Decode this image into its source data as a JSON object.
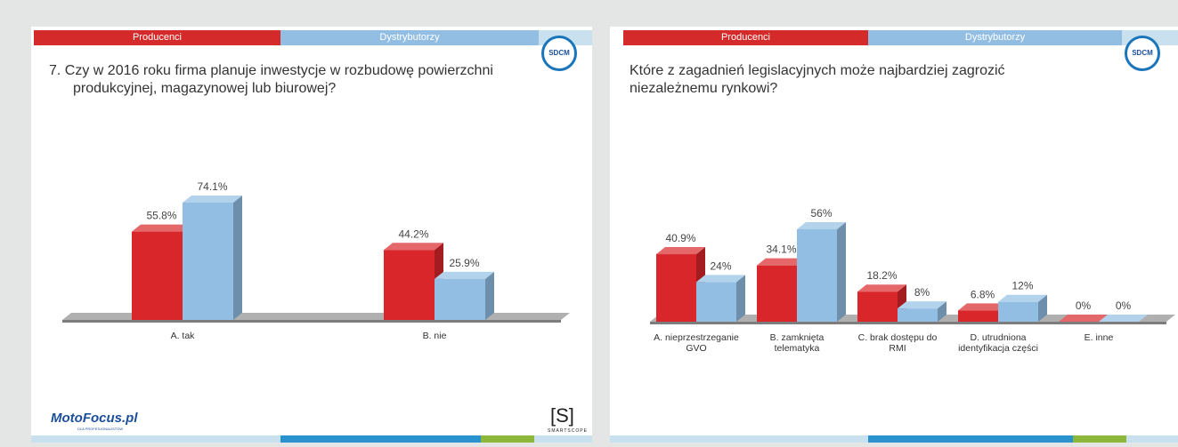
{
  "chart_data": [
    {
      "type": "bar",
      "title": "7. Czy w 2016 roku firma planuje inwestycje w rozbudowę powierzchni produkcyjnej, magazynowej lub biurowej?",
      "categories": [
        "A. tak",
        "B. nie"
      ],
      "series": [
        {
          "name": "Producenci",
          "color": "#d9262a",
          "values": [
            55.8,
            44.2
          ],
          "value_labels": [
            "55.8%",
            "44.2%"
          ]
        },
        {
          "name": "Dystrybutorzy",
          "color": "#93bee4",
          "values": [
            74.1,
            25.9
          ],
          "value_labels": [
            "74.1%",
            "25.9%"
          ]
        }
      ]
    },
    {
      "type": "bar",
      "title": "Które z zagadnień legislacyjnych może najbardziej zagrozić niezależnemu rynkowi?",
      "categories": [
        "A. nieprzestrzeganie GVO",
        "B. zamknięta telematyka",
        "C. brak dostępu do RMI",
        "D. utrudniona identyfikacja części",
        "E. inne"
      ],
      "series": [
        {
          "name": "Producenci",
          "color": "#d9262a",
          "values": [
            40.9,
            34.1,
            18.2,
            6.8,
            0
          ],
          "value_labels": [
            "40.9%",
            "34.1%",
            "18.2%",
            "6.8%",
            "0%"
          ]
        },
        {
          "name": "Dystrybutorzy",
          "color": "#93bee4",
          "values": [
            24,
            56,
            8,
            12,
            0
          ],
          "value_labels": [
            "24%",
            "56%",
            "8%",
            "12%",
            "0%"
          ]
        }
      ]
    }
  ],
  "branding": {
    "badge": "SDCM",
    "motofocus": "MotoFocus.pl",
    "motofocus_tagline": "DLA PROFESJONALISTÓW",
    "smartscope_mark": "[S]",
    "smartscope": "SMARTSCOPE"
  }
}
